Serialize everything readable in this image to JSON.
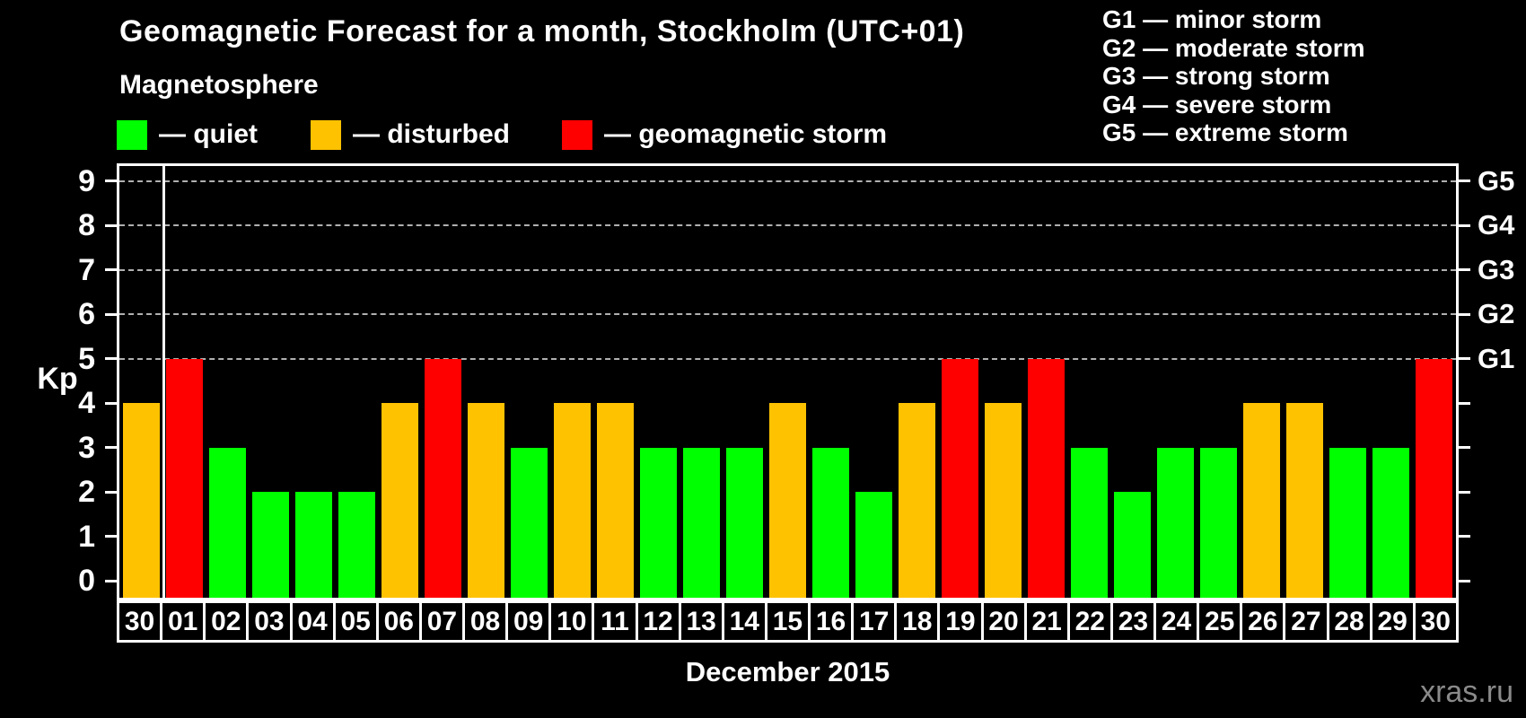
{
  "header": {
    "title": "Geomagnetic Forecast for a month, Stockholm (UTC+01)",
    "subtitle": "Magnetosphere"
  },
  "legend": {
    "items": [
      {
        "key": "quiet",
        "label": "— quiet",
        "color": "#00ff00"
      },
      {
        "key": "disturbed",
        "label": "— disturbed",
        "color": "#ffc200"
      },
      {
        "key": "storm",
        "label": "— geomagnetic storm",
        "color": "#ff0000"
      }
    ]
  },
  "g_legend": {
    "items": [
      "G1 — minor storm",
      "G2 — moderate storm",
      "G3 — strong storm",
      "G4 — severe storm",
      "G5 — extreme storm"
    ]
  },
  "chart_data": {
    "type": "bar",
    "title": "Geomagnetic Forecast for a month, Stockholm (UTC+01)",
    "ylabel": "Kp",
    "xlabel": "December 2015",
    "ylim": [
      0,
      9
    ],
    "grid": "dashed horizontal lines at storm levels only",
    "grid_levels": [
      5,
      6,
      7,
      8,
      9
    ],
    "y_ticks_left": [
      "0",
      "1",
      "2",
      "3",
      "4",
      "5",
      "6",
      "7",
      "8",
      "9"
    ],
    "right_axis_labels": [
      {
        "kp": 5,
        "label": "G1"
      },
      {
        "kp": 6,
        "label": "G2"
      },
      {
        "kp": 7,
        "label": "G3"
      },
      {
        "kp": 8,
        "label": "G4"
      },
      {
        "kp": 9,
        "label": "G5"
      }
    ],
    "month_separator_after_index": 0,
    "categories": [
      "30",
      "01",
      "02",
      "03",
      "04",
      "05",
      "06",
      "07",
      "08",
      "09",
      "10",
      "11",
      "12",
      "13",
      "14",
      "15",
      "16",
      "17",
      "18",
      "19",
      "20",
      "21",
      "22",
      "23",
      "24",
      "25",
      "26",
      "27",
      "28",
      "29",
      "30"
    ],
    "values": [
      4,
      5,
      3,
      2,
      2,
      2,
      4,
      5,
      4,
      3,
      4,
      4,
      3,
      3,
      3,
      4,
      3,
      2,
      4,
      5,
      4,
      5,
      3,
      2,
      3,
      3,
      4,
      4,
      3,
      3,
      5
    ],
    "statuses": [
      "disturbed",
      "storm",
      "quiet",
      "quiet",
      "quiet",
      "quiet",
      "disturbed",
      "storm",
      "disturbed",
      "quiet",
      "disturbed",
      "disturbed",
      "quiet",
      "quiet",
      "quiet",
      "disturbed",
      "quiet",
      "quiet",
      "disturbed",
      "storm",
      "disturbed",
      "storm",
      "quiet",
      "quiet",
      "quiet",
      "quiet",
      "disturbed",
      "disturbed",
      "quiet",
      "quiet",
      "storm"
    ],
    "status_colors": {
      "quiet": "#00ff00",
      "disturbed": "#ffc200",
      "storm": "#ff0000"
    }
  },
  "footer": {
    "caption": "December 2015",
    "watermark": "xras.ru"
  }
}
